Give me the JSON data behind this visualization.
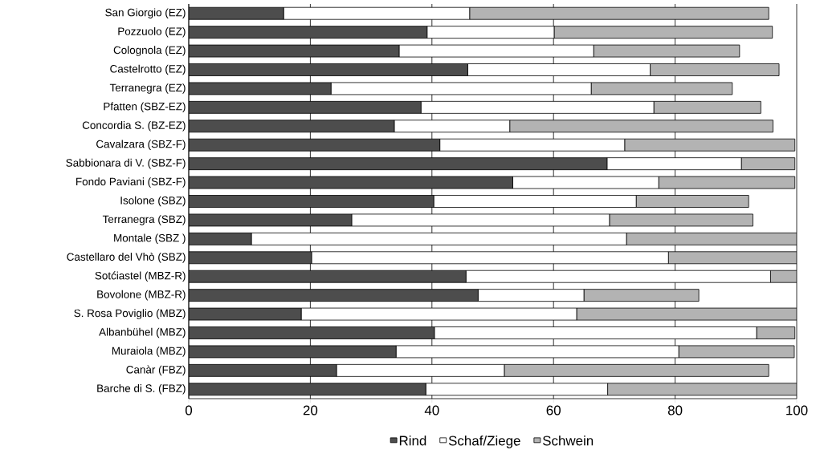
{
  "chart_data": {
    "type": "bar",
    "orientation": "horizontal",
    "stacked": true,
    "grid": "x",
    "legend": "bottom",
    "categories": [
      "San Giorgio (EZ)",
      "Pozzuolo (EZ)",
      "Colognola (EZ)",
      "Castelrotto (EZ)",
      "Terranegra (EZ)",
      "Pfatten (SBZ-EZ)",
      "Concordia S. (BZ-EZ)",
      "Cavalzara (SBZ-F)",
      "Sabbionara di V. (SBZ-F)",
      "Fondo Paviani (SBZ-F)",
      "Isolone (SBZ)",
      "Terranegra (SBZ)",
      "Montale (SBZ )",
      "Castellaro del Vhò (SBZ)",
      "Sotćiastel (MBZ-R)",
      "Bovolone (MBZ-R)",
      "S. Rosa Poviglio (MBZ)",
      "Albanbühel (MBZ)",
      "Muraiola (MBZ)",
      "Canàr (FBZ)",
      "Barche di S. (FBZ)"
    ],
    "series": [
      {
        "name": "Rind",
        "color": "#4d4d4d",
        "values": [
          15.6,
          39.2,
          34.6,
          45.9,
          23.4,
          38.2,
          33.8,
          41.3,
          68.8,
          53.3,
          40.3,
          26.8,
          10.3,
          20.2,
          45.6,
          47.6,
          18.5,
          40.4,
          34.1,
          24.3,
          39.0
        ]
      },
      {
        "name": "Schaf/Ziege",
        "color": "#ffffff",
        "values": [
          30.6,
          20.9,
          32.0,
          30.0,
          42.8,
          38.3,
          19.0,
          30.4,
          22.1,
          24.0,
          33.3,
          42.4,
          61.7,
          58.7,
          50.1,
          17.4,
          45.3,
          53.0,
          46.5,
          27.6,
          29.9
        ]
      },
      {
        "name": "Schwein",
        "color": "#b3b3b3",
        "values": [
          49.2,
          35.9,
          24.0,
          21.2,
          23.2,
          17.6,
          43.3,
          28.0,
          8.8,
          22.4,
          18.5,
          23.6,
          28.0,
          21.1,
          4.3,
          18.9,
          36.2,
          6.3,
          19.0,
          43.5,
          31.1
        ]
      }
    ],
    "xlim": [
      0,
      100
    ],
    "xticks": [
      0,
      20,
      40,
      60,
      80,
      100
    ]
  }
}
